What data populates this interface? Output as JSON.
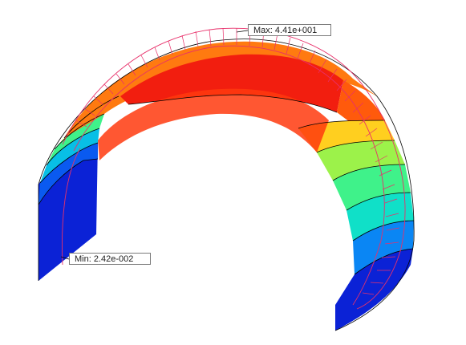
{
  "probes": {
    "max_label": "Max: 4.41e+001",
    "min_label": "Min: 2.42e-002"
  },
  "colors": {
    "background": "#ffffff",
    "contour_bands": [
      "#0b22d6",
      "#0a49ee",
      "#0a86f4",
      "#08bfe6",
      "#10e0c8",
      "#3ff28a",
      "#9cf24a",
      "#dff13a",
      "#ffcf1f",
      "#ff9411",
      "#ff5a0c",
      "#f21e0f"
    ],
    "contour_lines": "#000000",
    "stress_arrows": "#e8306a",
    "probe_leader": "#000000"
  }
}
